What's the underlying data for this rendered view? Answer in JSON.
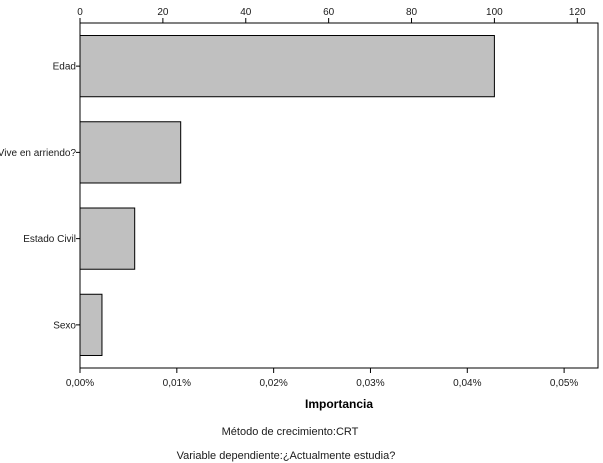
{
  "chart_data": {
    "type": "bar",
    "orientation": "horizontal",
    "categories": [
      "Edad",
      "Vive en arriendo?",
      "Estado Civil",
      "Sexo"
    ],
    "values": [
      100,
      24.3,
      13.2,
      5.3
    ],
    "top_axis": {
      "ticks": [
        0,
        20,
        40,
        60,
        80,
        100,
        120
      ],
      "tick_labels": [
        "0",
        "20",
        "40",
        "60",
        "80",
        "100",
        "120"
      ],
      "range": [
        0,
        125
      ]
    },
    "bottom_axis": {
      "ticks": [
        0,
        0.01,
        0.02,
        0.03,
        0.04,
        0.05
      ],
      "tick_labels": [
        "0,00%",
        "0,01%",
        "0,02%",
        "0,03%",
        "0,04%",
        "0,05%"
      ],
      "range": [
        0,
        0.0535
      ]
    },
    "xlabel": "Importancia",
    "notes": [
      "Método de crecimiento:CRT",
      "Variable dependiente:¿Actualmente estudia?"
    ],
    "bar_color": "#c0c0c0",
    "bar_edge_color": "#000000",
    "grid": false,
    "legend": "none"
  }
}
